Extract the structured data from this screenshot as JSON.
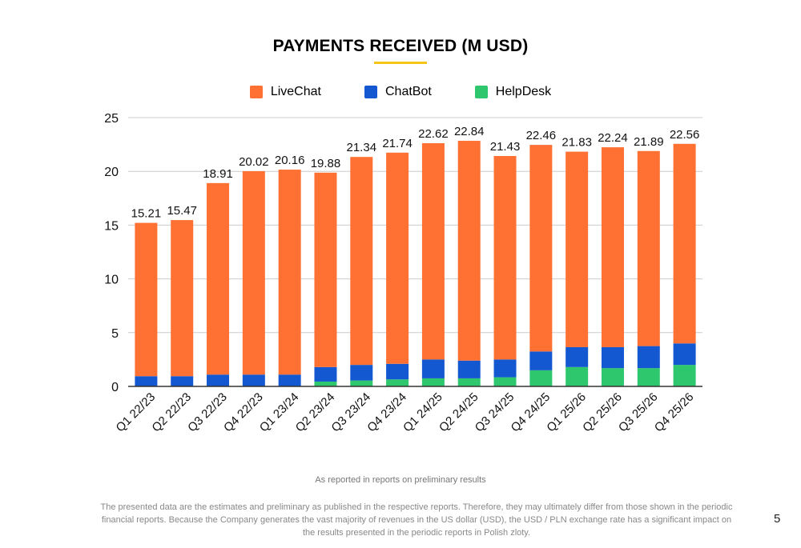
{
  "title": "PAYMENTS RECEIVED (M USD)",
  "colors": {
    "title_underline": "#f5c518",
    "livechat": "#ff7033",
    "chatbot": "#1458d1",
    "helpdesk": "#2ec76d",
    "grid": "#cccccc",
    "axis": "#333333"
  },
  "legend": [
    {
      "label": "LiveChat",
      "color": "#ff7033"
    },
    {
      "label": "ChatBot",
      "color": "#1458d1"
    },
    {
      "label": "HelpDesk",
      "color": "#2ec76d"
    }
  ],
  "chart_data": {
    "type": "bar",
    "stacked": true,
    "categories": [
      "Q1 22/23",
      "Q2 22/23",
      "Q3 22/23",
      "Q4 22/23",
      "Q1 23/24",
      "Q2 23/24",
      "Q3 23/24",
      "Q4 23/24",
      "Q1 24/25",
      "Q2 24/25",
      "Q3 24/25",
      "Q4 24/25",
      "Q1 25/26",
      "Q2 25/26",
      "Q3 25/26",
      "Q4 25/26"
    ],
    "series": [
      {
        "name": "HelpDesk",
        "values": [
          0,
          0,
          0,
          0,
          0,
          0.45,
          0.55,
          0.65,
          0.75,
          0.75,
          0.85,
          1.5,
          1.8,
          1.7,
          1.7,
          2.0
        ]
      },
      {
        "name": "ChatBot",
        "values": [
          0.95,
          0.95,
          1.1,
          1.1,
          1.1,
          1.35,
          1.45,
          1.45,
          1.75,
          1.65,
          1.65,
          1.75,
          1.85,
          1.95,
          2.05,
          2.0
        ]
      },
      {
        "name": "LiveChat",
        "values": [
          14.26,
          14.52,
          17.81,
          18.92,
          19.06,
          18.08,
          19.34,
          19.64,
          20.12,
          20.44,
          18.93,
          19.21,
          18.18,
          18.59,
          18.14,
          18.56
        ]
      }
    ],
    "totals": [
      "15.21",
      "15.47",
      "18.91",
      "20.02",
      "20.16",
      "19.88",
      "21.34",
      "21.74",
      "22.62",
      "22.84",
      "21.43",
      "22.46",
      "21.83",
      "22.24",
      "21.89",
      "22.56"
    ],
    "ylim": [
      0,
      25
    ],
    "yticks": [
      0,
      5,
      10,
      15,
      20,
      25
    ],
    "grid": true,
    "legend_position": "top"
  },
  "note": "As reported in reports on preliminary results",
  "disclaimer": "The presented data are the estimates and preliminary as published in the respective reports. Therefore, they may ultimately differ from those shown in the periodic financial reports. Because the Company generates the vast majority of revenues in the US dollar (USD), the USD / PLN exchange rate has a significant impact on the results presented in the periodic reports in Polish zloty.",
  "page_number": "5"
}
